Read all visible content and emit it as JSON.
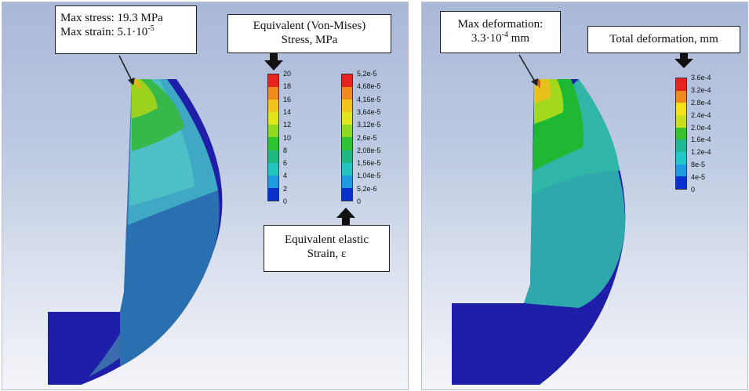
{
  "left_panel": {
    "max_stress_label": "Max stress: 19.3 MPa",
    "max_strain_label": "Max strain: 5.1·10",
    "max_strain_exponent": "-5",
    "stress_title_line1": "Equivalent (Von-Mises)",
    "stress_title_line2": "Stress, MPa",
    "strain_title_line1": "Equivalent elastic",
    "strain_title_line2": "Strain, ε",
    "stress_legend": [
      "20",
      "18",
      "16",
      "14",
      "12",
      "10",
      "8",
      "6",
      "4",
      "2",
      "0"
    ],
    "strain_legend": [
      "5,2e-5",
      "4,68e-5",
      "4,16e-5",
      "3,64e-5",
      "3,12e-5",
      "2,6e-5",
      "2,08e-5",
      "1,56e-5",
      "1,04e-5",
      "5,2e-6",
      "0"
    ]
  },
  "right_panel": {
    "max_deformation_line1": "Max deformation:",
    "max_deformation_line2": "3.3·10",
    "max_deformation_exponent": "-4",
    "max_deformation_unit": " mm",
    "deformation_title": "Total deformation, mm",
    "deformation_legend": [
      "3.6e-4",
      "3.2e-4",
      "2.8e-4",
      "2.4e-4",
      "2.0e-4",
      "1.6e-4",
      "1.2e-4",
      "8e-5",
      "4e-5",
      "0"
    ]
  },
  "colors": {
    "legend_10": [
      "#e8231c",
      "#f08a1c",
      "#f2c41a",
      "#dfe61a",
      "#8fd91e",
      "#2ec432",
      "#1fb882",
      "#22c4c0",
      "#1e9be0",
      "#0a2fcf"
    ],
    "legend_9": [
      "#e8231c",
      "#f08a1c",
      "#f4e11a",
      "#c8e01c",
      "#38c22c",
      "#1fb896",
      "#22c8c8",
      "#1e9be0",
      "#0a2fcf"
    ],
    "deep_blue": "#1e1ea8",
    "mid_blue": "#2a6fb0",
    "teal": "#37b3b0",
    "green": "#1fb832"
  }
}
